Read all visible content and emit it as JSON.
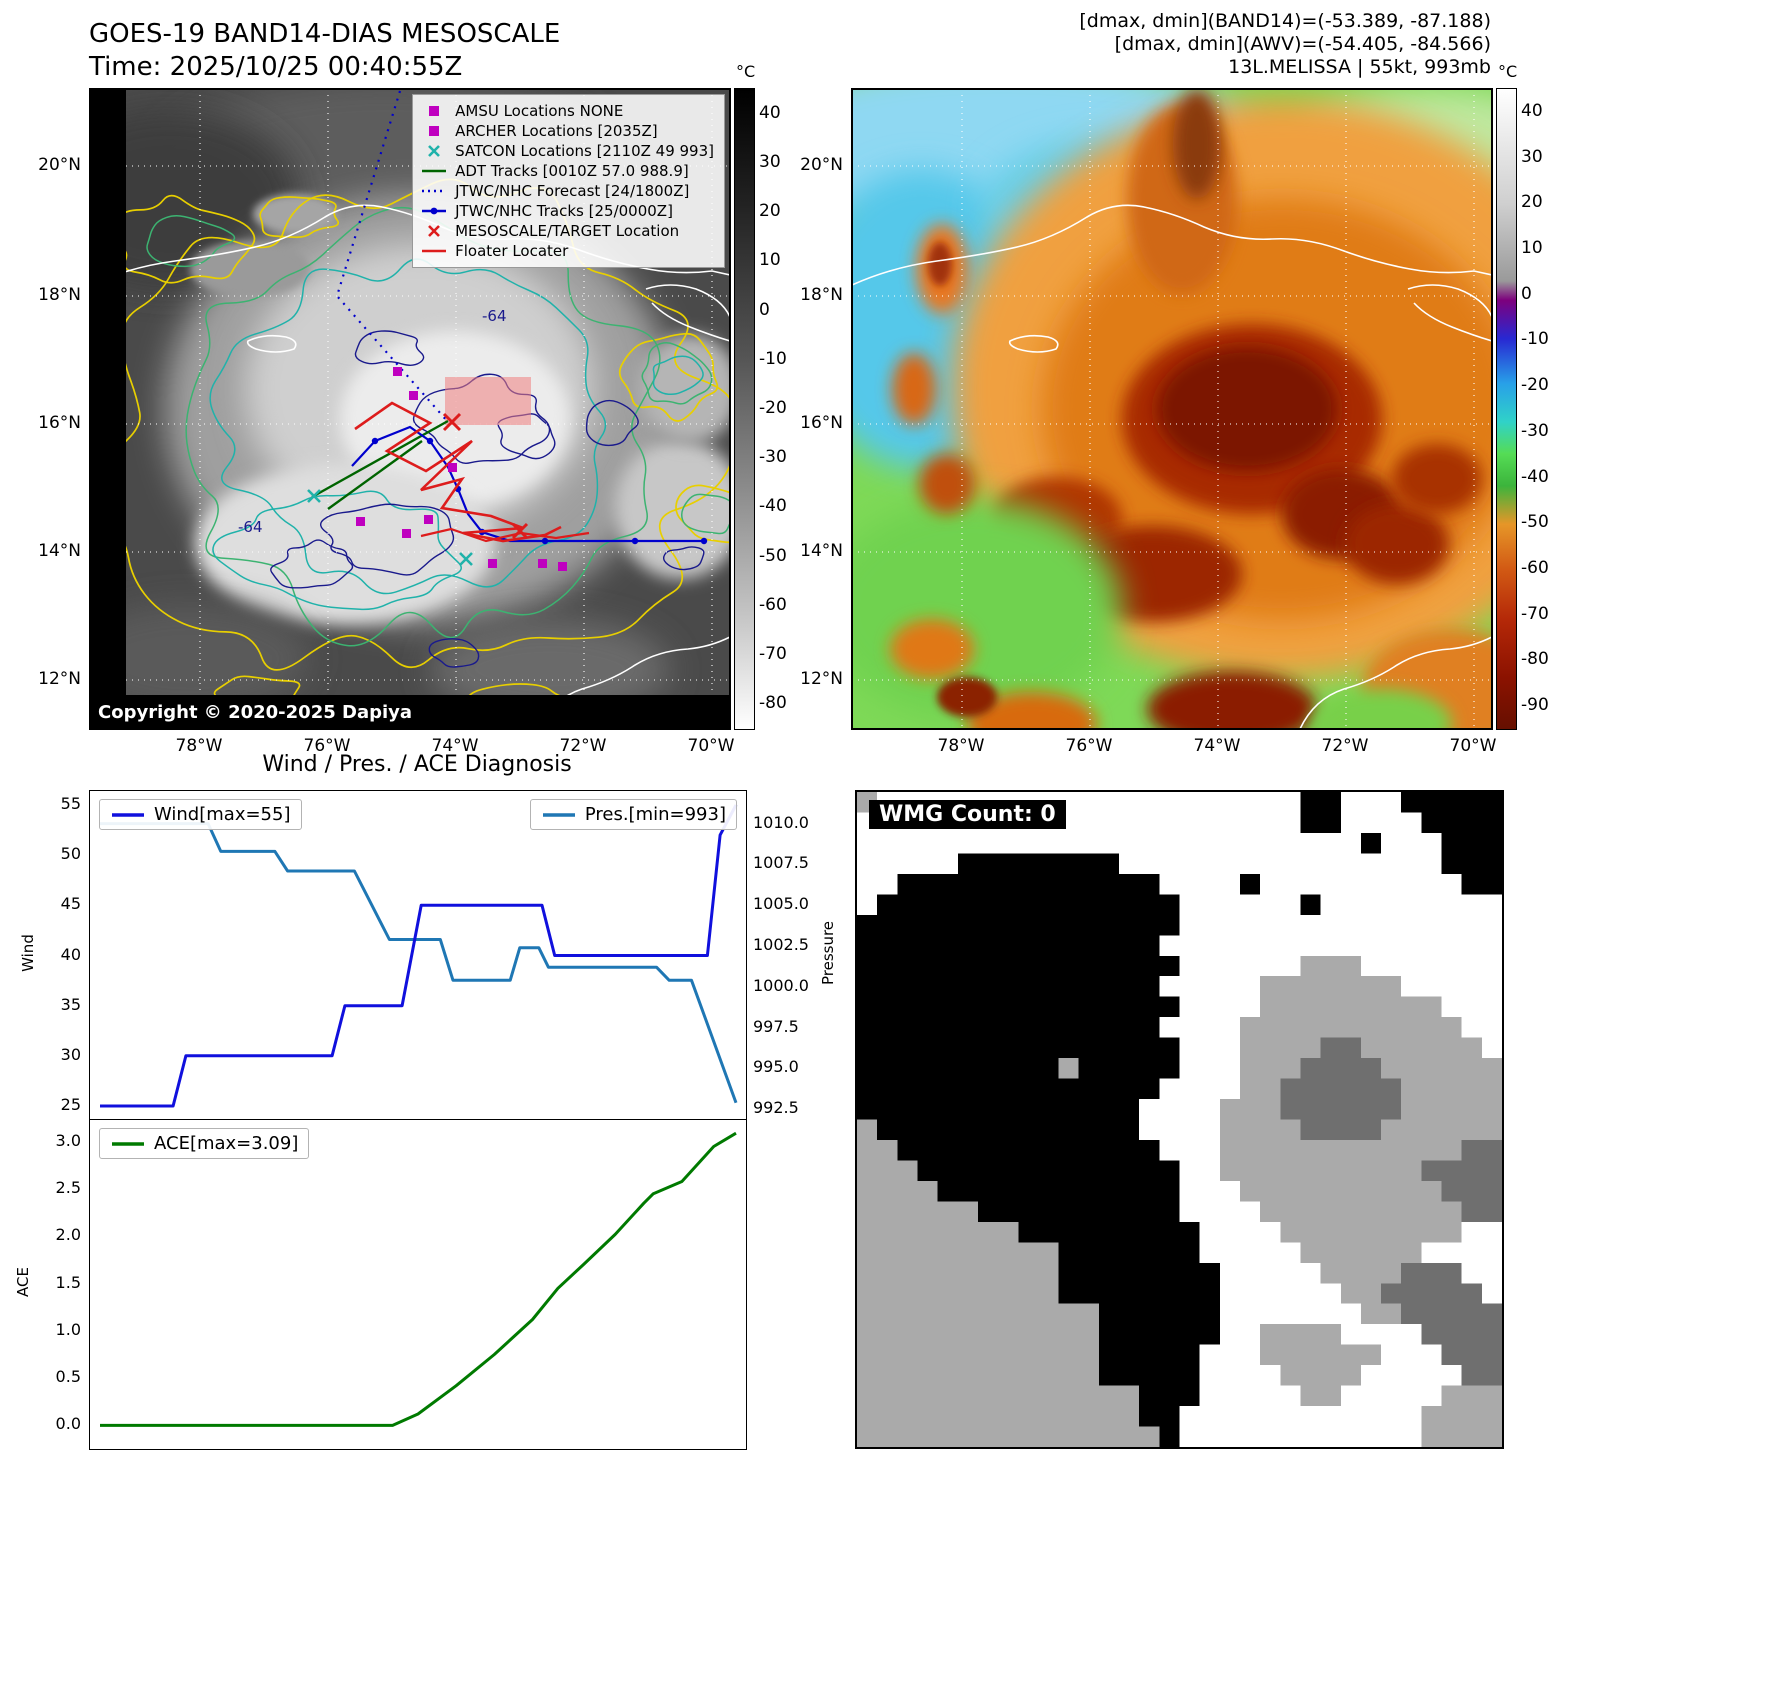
{
  "panel_tl": {
    "title": "GOES-19 BAND14-DIAS MESOSCALE",
    "subtitle": "Time: 2025/10/25 00:40:55Z",
    "copyright": "Copyright © 2020-2025 Dapiya",
    "colorbar": {
      "unit": "°C",
      "vmax": 45,
      "vmin": -85,
      "ticks": [
        40,
        30,
        20,
        10,
        0,
        -10,
        -20,
        -30,
        -40,
        -50,
        -60,
        -70,
        -80
      ]
    },
    "lat_ticks": [
      "20°N",
      "18°N",
      "16°N",
      "14°N",
      "12°N"
    ],
    "lon_ticks": [
      "78°W",
      "76°W",
      "74°W",
      "72°W",
      "70°W"
    ],
    "contour_labels": [
      "-64",
      "-64"
    ],
    "legend": [
      {
        "marker": "square",
        "color": "#bf00bf",
        "label": "AMSU Locations NONE"
      },
      {
        "marker": "square",
        "color": "#bf00bf",
        "label": "ARCHER Locations [2035Z]"
      },
      {
        "marker": "x",
        "color": "#20b2aa",
        "label": "SATCON Locations [2110Z 49 993]"
      },
      {
        "marker": "line",
        "color": "#006400",
        "label": "ADT Tracks [0010Z 57.0 988.9]"
      },
      {
        "marker": "dotted",
        "color": "#0000cd",
        "label": "JTWC/NHC Forecast [24/1800Z]"
      },
      {
        "marker": "line-dot",
        "color": "#0000cd",
        "label": "JTWC/NHC Tracks [25/0000Z]"
      },
      {
        "marker": "x",
        "color": "#dd1c1c",
        "label": "MESOSCALE/TARGET Location"
      },
      {
        "marker": "line",
        "color": "#dd1c1c",
        "label": "Floater Locater"
      }
    ]
  },
  "panel_tr": {
    "title_lines": [
      "[dmax, dmin](BAND14)=(-53.389, -87.188)",
      "[dmax, dmin](AWV)=(-54.405, -84.566)",
      "13L.MELISSA | 55kt, 993mb"
    ],
    "colorbar": {
      "unit": "°C",
      "vmax": 45,
      "vmin": -95,
      "ticks": [
        40,
        30,
        20,
        10,
        0,
        -10,
        -20,
        -30,
        -40,
        -50,
        -60,
        -70,
        -80,
        -90
      ]
    },
    "lat_ticks": [
      "20°N",
      "18°N",
      "16°N",
      "14°N",
      "12°N"
    ],
    "lon_ticks": [
      "78°W",
      "76°W",
      "74°W",
      "72°W",
      "70°W"
    ]
  },
  "diagnosis": {
    "title": "Wind / Pres. / ACE Diagnosis",
    "wind_legend": "Wind[max=55]",
    "pres_legend": "Pres.[min=993]",
    "ace_legend": "ACE[max=3.09]",
    "ylabel_wind": "Wind",
    "ylabel_pressure": "Pressure",
    "ylabel_ace": "ACE"
  },
  "chart_data": [
    {
      "type": "line",
      "title": "Wind / Pres. / ACE Diagnosis",
      "series": [
        {
          "name": "Wind[max=55]",
          "axis": "left",
          "color": "#1010dd",
          "x": [
            0,
            0.115,
            0.135,
            0.365,
            0.385,
            0.475,
            0.505,
            0.695,
            0.715,
            0.955,
            0.975,
            1.0
          ],
          "values": [
            25,
            25,
            30,
            30,
            35,
            35,
            45,
            45,
            40,
            40,
            52,
            55
          ]
        },
        {
          "name": "Pres.[min=993]",
          "axis": "right",
          "color": "#1f77b4",
          "x": [
            0,
            0.17,
            0.19,
            0.275,
            0.295,
            0.4,
            0.455,
            0.535,
            0.555,
            0.645,
            0.66,
            0.69,
            0.705,
            0.875,
            0.895,
            0.93,
            1.0
          ],
          "values": [
            1010,
            1010,
            1008.3,
            1008.3,
            1007.1,
            1007.1,
            1002.9,
            1002.9,
            1000.4,
            1000.4,
            1002.4,
            1002.4,
            1001.2,
            1001.2,
            1000.4,
            1000.4,
            992.9
          ]
        }
      ],
      "ylabel_left": "Wind",
      "ylabel_right": "Pressure",
      "ylim_left": [
        23.7,
        56.4
      ],
      "ylim_right": [
        991.9,
        1012.0
      ],
      "yticks_left": [
        25,
        30,
        35,
        40,
        45,
        50,
        55
      ],
      "yticks_right": [
        992.5,
        995.0,
        997.5,
        1000.0,
        1002.5,
        1005.0,
        1007.5,
        1010.0
      ],
      "legend_position": "upper-left and upper-right",
      "grid": false
    },
    {
      "type": "line",
      "series": [
        {
          "name": "ACE[max=3.09]",
          "color": "#007a00",
          "x": [
            0,
            0.46,
            0.5,
            0.56,
            0.62,
            0.68,
            0.72,
            0.76,
            0.81,
            0.855,
            0.87,
            0.915,
            0.965,
            1.0
          ],
          "values": [
            0,
            0,
            0.12,
            0.42,
            0.75,
            1.12,
            1.45,
            1.7,
            2.02,
            2.35,
            2.45,
            2.58,
            2.95,
            3.09
          ]
        }
      ],
      "ylabel": "ACE",
      "ylim": [
        -0.25,
        3.23
      ],
      "yticks": [
        0.0,
        0.5,
        1.0,
        1.5,
        2.0,
        2.5,
        3.0
      ],
      "legend_position": "upper-left",
      "grid": false
    }
  ],
  "panel_br": {
    "label": "WMG Count: 0",
    "palette": {
      "b": "#000000",
      "d": "#6f6f6f",
      "g": "#aaaaaa",
      "w": "#ffffff"
    },
    "grid": [
      "gwwwwwwwwwwwwwwwwwwwwwbbwwwbbbbb",
      "wwwwwwwwwwwwwwwwwwwwwwbbwwwwbbbb",
      "wwwwwwwwwwwwwwwwwwwwwwwwwbwwwbbb",
      "wwwwwbbbbbbbbwwwwwwwwwwwwwwwwbbb",
      "wwbbbbbbbbbbbbbwwwwbwwwwwwwwwwbb",
      "wbbbbbbbbbbbbbbbwwwwwwbwwwwwwwww",
      "bbbbbbbbbbbbbbbbwwwwwwwwwwwwwwww",
      "bbbbbbbbbbbbbbbwwwwwwwwwwwwwwwww",
      "bbbbbbbbbbbbbbbbwwwwwwgggwwwwwww",
      "bbbbbbbbbbbbbbbwwwwwgggggggwwwww",
      "bbbbbbbbbbbbbbbbwwwwgggggggggwww",
      "bbbbbbbbbbbbbbbwwwwgggggggggggww",
      "bbbbbbbbbbbbbbbbwwwggggddggggggw",
      "bbbbbbbbbbgbbbbbwwwgggddddgggggg",
      "bbbbbbbbbbbbbbbwwwwggddddddggggg",
      "bbbbbbbbbbbbbbwwwwgggddddddggggg",
      "gbbbbbbbbbbbbbwwwwggggddddgggggg",
      "ggbbbbbbbbbbbbbwwwggggggggggggdd",
      "gggbbbbbbbbbbbbbwwggggggggggdddd",
      "ggggbbbbbbbbbbbbwwwggggggggggddd",
      "ggggggbbbbbbbbbbwwwwggggggggggdd",
      "ggggggggbbbbbbbbbwwwwgggggggggww",
      "ggggggggggbbbbbbbwwwwwggggggwwww",
      "ggggggggggbbbbbbbbwwwwwggggdddww",
      "ggggggggggbbbbbbbbwwwwwwggdddddw",
      "ggggggggggggbbbbbbwwwwwwwggddddd",
      "ggggggggggggbbbbbbwwggggwwwwdddd",
      "ggggggggggggbbbbbwwwggggggwwwddd",
      "ggggggggggggbbbbbwwwwggggwwwwwdd",
      "ggggggggggggggbbbwwwwwggwwwwwggg",
      "ggggggggggggggbbwwwwwwwwwwwwgggg",
      "gggggggggggggggbwwwwwwwwwwwwgggg"
    ]
  }
}
